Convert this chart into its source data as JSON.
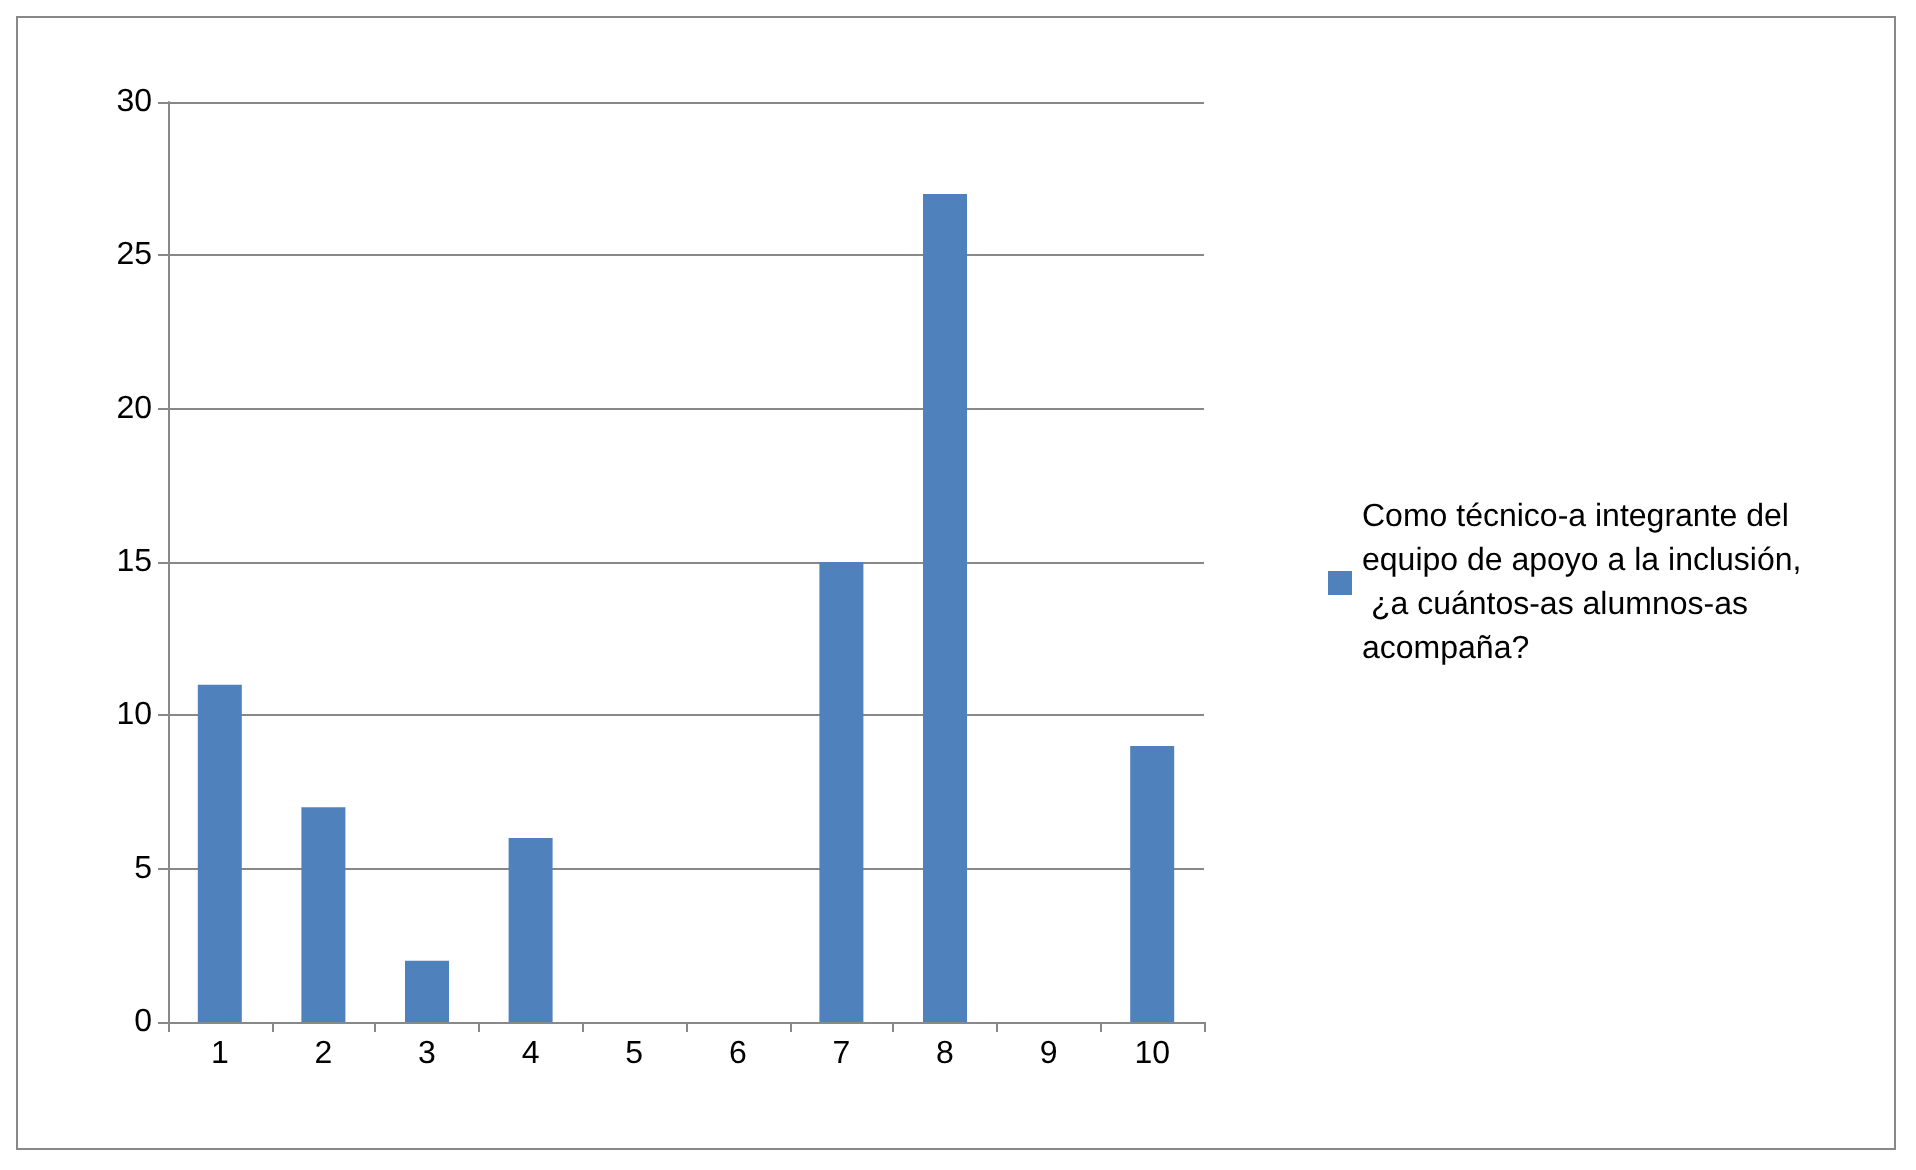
{
  "chart_data": {
    "type": "bar",
    "categories": [
      "1",
      "2",
      "3",
      "4",
      "5",
      "6",
      "7",
      "8",
      "9",
      "10"
    ],
    "series": [
      {
        "name": "Como técnico-a integrante del equipo de apoyo a la inclusión, ¿a cuántos-as alumnos-as acompaña?",
        "color": "#4f81bd",
        "values": [
          11,
          7,
          2,
          6,
          0,
          0,
          15,
          27,
          0,
          9
        ]
      }
    ],
    "ylim": [
      0,
      30
    ],
    "yticks": [
      0,
      5,
      10,
      15,
      20,
      25,
      30
    ],
    "grid": "y",
    "legend": "right"
  }
}
